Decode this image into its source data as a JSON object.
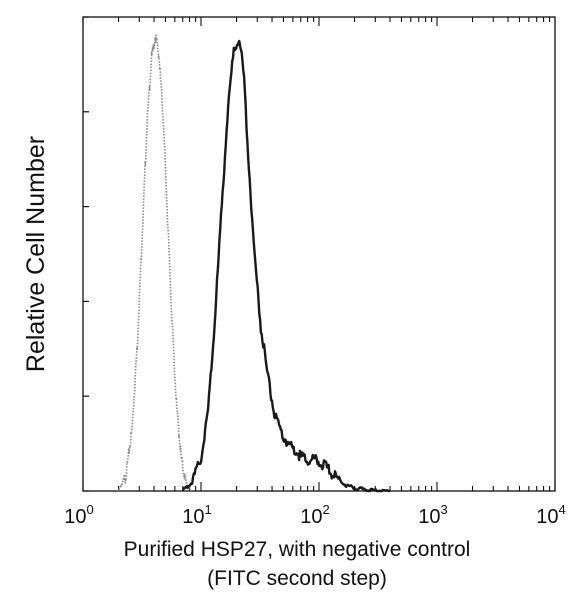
{
  "chart_data": {
    "type": "line",
    "title": "",
    "ylabel": "Relative Cell Number",
    "xlabel_line1": "Purified HSP27, with negative control",
    "xlabel_line2": "(FITC second step)",
    "x_scale": "log",
    "xlim": [
      1,
      10000
    ],
    "ylim": [
      0,
      1
    ],
    "grid": false,
    "legend": "none",
    "x_ticks": [
      {
        "base": "10",
        "exp": "0"
      },
      {
        "base": "10",
        "exp": "1"
      },
      {
        "base": "10",
        "exp": "2"
      },
      {
        "base": "10",
        "exp": "3"
      },
      {
        "base": "10",
        "exp": "4"
      }
    ],
    "series": [
      {
        "style": "dotted-gray",
        "color": "#8a8a8a",
        "x": [
          2.0,
          2.3,
          2.6,
          2.9,
          3.2,
          3.5,
          3.8,
          4.1,
          4.4,
          4.8,
          5.2,
          5.7,
          6.2,
          6.8,
          7.4,
          8.2
        ],
        "y": [
          0.0,
          0.03,
          0.13,
          0.32,
          0.56,
          0.78,
          0.91,
          0.96,
          0.92,
          0.78,
          0.58,
          0.35,
          0.18,
          0.07,
          0.02,
          0.0
        ]
      },
      {
        "style": "solid-dark",
        "color": "#1a1a1a",
        "x": [
          7.0,
          8.5,
          10,
          11.5,
          13,
          15,
          17,
          19,
          21,
          23,
          25,
          28,
          32,
          37,
          42,
          48,
          55,
          63,
          72,
          82,
          95,
          110,
          125,
          145,
          170,
          200,
          250,
          300,
          400
        ],
        "y": [
          0.0,
          0.02,
          0.07,
          0.17,
          0.35,
          0.6,
          0.82,
          0.93,
          0.96,
          0.88,
          0.72,
          0.52,
          0.35,
          0.24,
          0.16,
          0.12,
          0.1,
          0.085,
          0.07,
          0.065,
          0.065,
          0.055,
          0.04,
          0.025,
          0.012,
          0.006,
          0.003,
          0.001,
          0.0
        ]
      }
    ]
  }
}
